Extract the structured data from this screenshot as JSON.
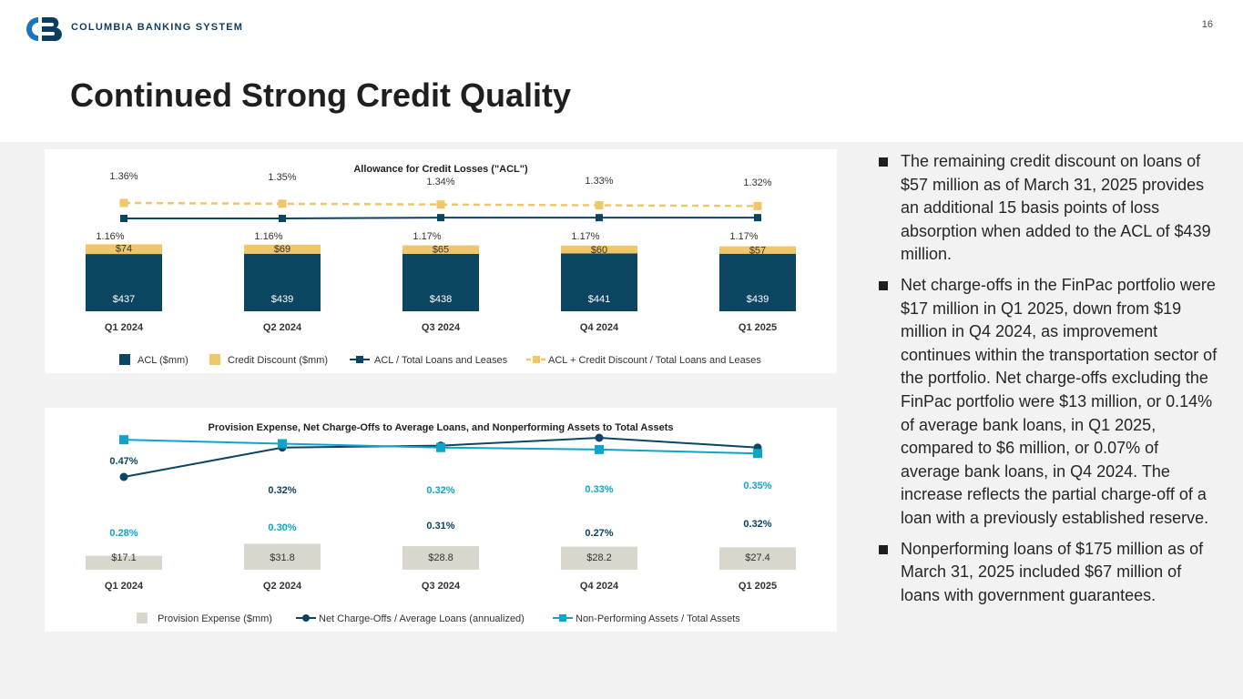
{
  "header": {
    "company": "COLUMBIA BANKING SYSTEM",
    "page_number": "16",
    "title": "Continued Strong Credit Quality",
    "logo_icon": "cb-logo-icon"
  },
  "colors": {
    "navy": "#0b4561",
    "gold": "#efc66a",
    "gray": "#d9d6cd",
    "teal": "#0ea5c9",
    "accent_blue": "#1b75bb"
  },
  "chart_data": [
    {
      "type": "bar",
      "title": "Allowance for Credit Losses (\"ACL\")",
      "categories": [
        "Q1 2024",
        "Q2 2024",
        "Q3 2024",
        "Q4 2024",
        "Q1 2025"
      ],
      "series": [
        {
          "name": "ACL ($mm)",
          "kind": "stacked-bar",
          "values": [
            437,
            439,
            438,
            441,
            439
          ],
          "labels": [
            "$437",
            "$439",
            "$438",
            "$441",
            "$439"
          ]
        },
        {
          "name": "Credit Discount ($mm)",
          "kind": "stacked-bar",
          "values": [
            74,
            69,
            65,
            60,
            57
          ],
          "labels": [
            "$74",
            "$69",
            "$65",
            "$60",
            "$57"
          ]
        },
        {
          "name": "ACL / Total Loans and Leases",
          "kind": "line",
          "values": [
            1.16,
            1.16,
            1.17,
            1.17,
            1.17
          ],
          "labels": [
            "1.16%",
            "1.16%",
            "1.17%",
            "1.17%",
            "1.17%"
          ]
        },
        {
          "name": "ACL + Credit Discount / Total Loans and Leases",
          "kind": "dashed-line",
          "values": [
            1.36,
            1.35,
            1.34,
            1.33,
            1.32
          ],
          "labels": [
            "1.36%",
            "1.35%",
            "1.34%",
            "1.33%",
            "1.32%"
          ]
        }
      ],
      "legend": "bottom"
    },
    {
      "type": "bar",
      "title": "Provision Expense, Net Charge-Offs to Average Loans, and Nonperforming Assets to Total Assets",
      "categories": [
        "Q1 2024",
        "Q2 2024",
        "Q3 2024",
        "Q4 2024",
        "Q1 2025"
      ],
      "series": [
        {
          "name": "Provision Expense ($mm)",
          "kind": "bar",
          "values": [
            17.1,
            31.8,
            28.8,
            28.2,
            27.4
          ],
          "labels": [
            "$17.1",
            "$31.8",
            "$28.8",
            "$28.2",
            "$27.4"
          ]
        },
        {
          "name": "Net Charge-Offs / Average Loans (annualized)",
          "kind": "line-circle",
          "values": [
            0.47,
            0.32,
            0.31,
            0.27,
            0.32
          ],
          "labels": [
            "0.47%",
            "0.32%",
            "0.31%",
            "0.27%",
            "0.32%"
          ]
        },
        {
          "name": "Non-Performing Assets / Total Assets",
          "kind": "line-square",
          "values": [
            0.28,
            0.3,
            0.32,
            0.33,
            0.35
          ],
          "labels": [
            "0.28%",
            "0.30%",
            "0.32%",
            "0.33%",
            "0.35%"
          ]
        }
      ],
      "legend": "bottom"
    }
  ],
  "bullets": [
    "The remaining credit discount on loans of $57 million as of March 31, 2025 provides an additional 15 basis points of loss absorption when added to the ACL of $439 million.",
    "Net charge-offs in the FinPac portfolio were $17 million in Q1 2025, down from $19 million in Q4 2024, as improvement continues within the transportation sector of the portfolio. Net charge-offs excluding the FinPac portfolio were $13 million, or 0.14% of average bank loans, in Q1 2025, compared to $6 million, or 0.07% of average bank loans, in Q4 2024. The increase reflects the partial charge-off of a loan with a previously established reserve.",
    "Nonperforming loans of $175 million as of March 31, 2025 included $67 million of loans with government guarantees."
  ]
}
